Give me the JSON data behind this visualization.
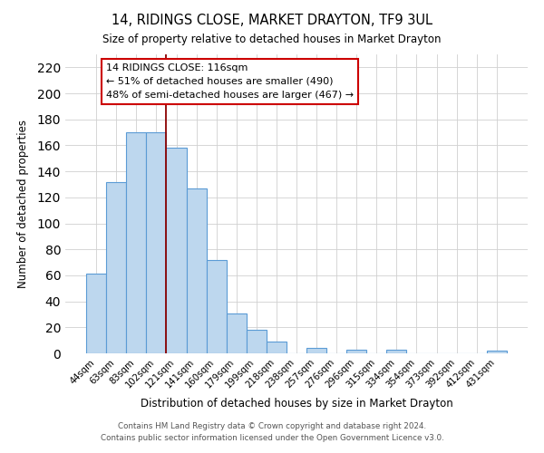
{
  "title": "14, RIDINGS CLOSE, MARKET DRAYTON, TF9 3UL",
  "subtitle": "Size of property relative to detached houses in Market Drayton",
  "xlabel": "Distribution of detached houses by size in Market Drayton",
  "ylabel": "Number of detached properties",
  "bar_labels": [
    "44sqm",
    "63sqm",
    "83sqm",
    "102sqm",
    "121sqm",
    "141sqm",
    "160sqm",
    "179sqm",
    "199sqm",
    "218sqm",
    "238sqm",
    "257sqm",
    "276sqm",
    "296sqm",
    "315sqm",
    "334sqm",
    "354sqm",
    "373sqm",
    "392sqm",
    "412sqm",
    "431sqm"
  ],
  "bar_values": [
    61,
    132,
    170,
    170,
    158,
    127,
    72,
    31,
    18,
    9,
    0,
    4,
    0,
    3,
    0,
    3,
    0,
    0,
    0,
    0,
    2
  ],
  "bar_color": "#bdd7ee",
  "bar_edge_color": "#5b9bd5",
  "ylim": [
    0,
    230
  ],
  "yticks": [
    0,
    20,
    40,
    60,
    80,
    100,
    120,
    140,
    160,
    180,
    200,
    220
  ],
  "vline_index": 4,
  "vline_color": "#8b0000",
  "annotation_text": "14 RIDINGS CLOSE: 116sqm\n← 51% of detached houses are smaller (490)\n48% of semi-detached houses are larger (467) →",
  "annotation_box_color": "#ffffff",
  "annotation_box_edge_color": "#cc0000",
  "footer_line1": "Contains HM Land Registry data © Crown copyright and database right 2024.",
  "footer_line2": "Contains public sector information licensed under the Open Government Licence v3.0.",
  "background_color": "#ffffff",
  "grid_color": "#d0d0d0"
}
